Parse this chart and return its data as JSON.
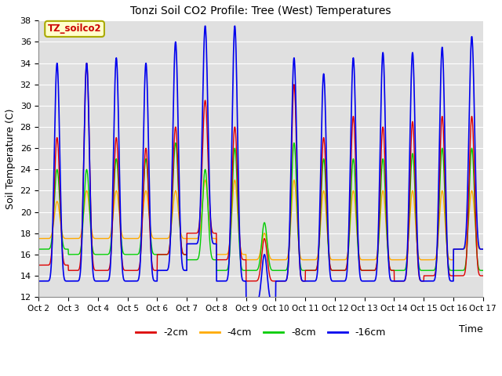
{
  "title": "Tonzi Soil CO2 Profile: Tree (West) Temperatures",
  "ylabel": "Soil Temperature (C)",
  "xlabel": "Time",
  "annotation": "TZ_soilco2",
  "annotation_color": "#cc0000",
  "annotation_bg": "#ffffcc",
  "annotation_border": "#cccc00",
  "ylim": [
    12,
    38
  ],
  "yticks": [
    12,
    14,
    16,
    18,
    20,
    22,
    24,
    26,
    28,
    30,
    32,
    34,
    36,
    38
  ],
  "xtick_labels": [
    "Oct 2",
    "Oct 3",
    "Oct 4",
    "Oct 5",
    "Oct 6",
    "Oct 7",
    "Oct 8",
    "Oct 9",
    "Oct 10",
    "Oct 11",
    "Oct 12",
    "Oct 13",
    "Oct 14",
    "Oct 15",
    "Oct 16",
    "Oct 17"
  ],
  "line_colors": [
    "#dd0000",
    "#ffaa00",
    "#00cc00",
    "#0000ee"
  ],
  "line_labels": [
    "-2cm",
    "-4cm",
    "-8cm",
    "-16cm"
  ],
  "plot_bg": "#e0e0e0",
  "grid_color": "#ffffff",
  "n_days": 15,
  "points_per_day": 144,
  "depths_max_pattern": [
    [
      27.0,
      34.0,
      27.0,
      26.0,
      28.0,
      30.5,
      28.0,
      17.5,
      32.0,
      27.0,
      29.0,
      28.0,
      28.5,
      29.0,
      29.0
    ],
    [
      21.0,
      22.0,
      22.0,
      22.0,
      22.0,
      23.0,
      23.0,
      18.0,
      23.0,
      22.0,
      22.0,
      22.0,
      22.0,
      22.0,
      22.0
    ],
    [
      24.0,
      24.0,
      25.0,
      25.0,
      26.5,
      24.0,
      26.0,
      19.0,
      26.5,
      25.0,
      25.0,
      25.0,
      25.5,
      26.0,
      26.0
    ],
    [
      34.0,
      34.0,
      34.5,
      34.0,
      36.0,
      37.5,
      37.5,
      16.0,
      34.5,
      33.0,
      34.5,
      35.0,
      35.0,
      35.5,
      36.5
    ]
  ],
  "depths_min_pattern": [
    [
      15.0,
      14.5,
      14.5,
      14.5,
      16.0,
      18.0,
      15.5,
      13.5,
      13.5,
      14.5,
      14.5,
      14.5,
      13.5,
      14.0,
      14.0
    ],
    [
      17.5,
      17.5,
      17.5,
      17.5,
      17.5,
      17.5,
      16.0,
      15.5,
      15.5,
      15.5,
      15.5,
      15.5,
      15.5,
      15.5,
      16.5
    ],
    [
      16.5,
      16.0,
      16.0,
      16.0,
      16.0,
      15.5,
      14.5,
      14.5,
      14.5,
      14.5,
      14.5,
      14.5,
      14.5,
      14.5,
      14.5
    ],
    [
      13.5,
      13.5,
      13.5,
      13.5,
      14.5,
      17.0,
      13.5,
      11.5,
      13.5,
      13.5,
      13.5,
      13.5,
      13.5,
      13.5,
      16.5
    ]
  ]
}
